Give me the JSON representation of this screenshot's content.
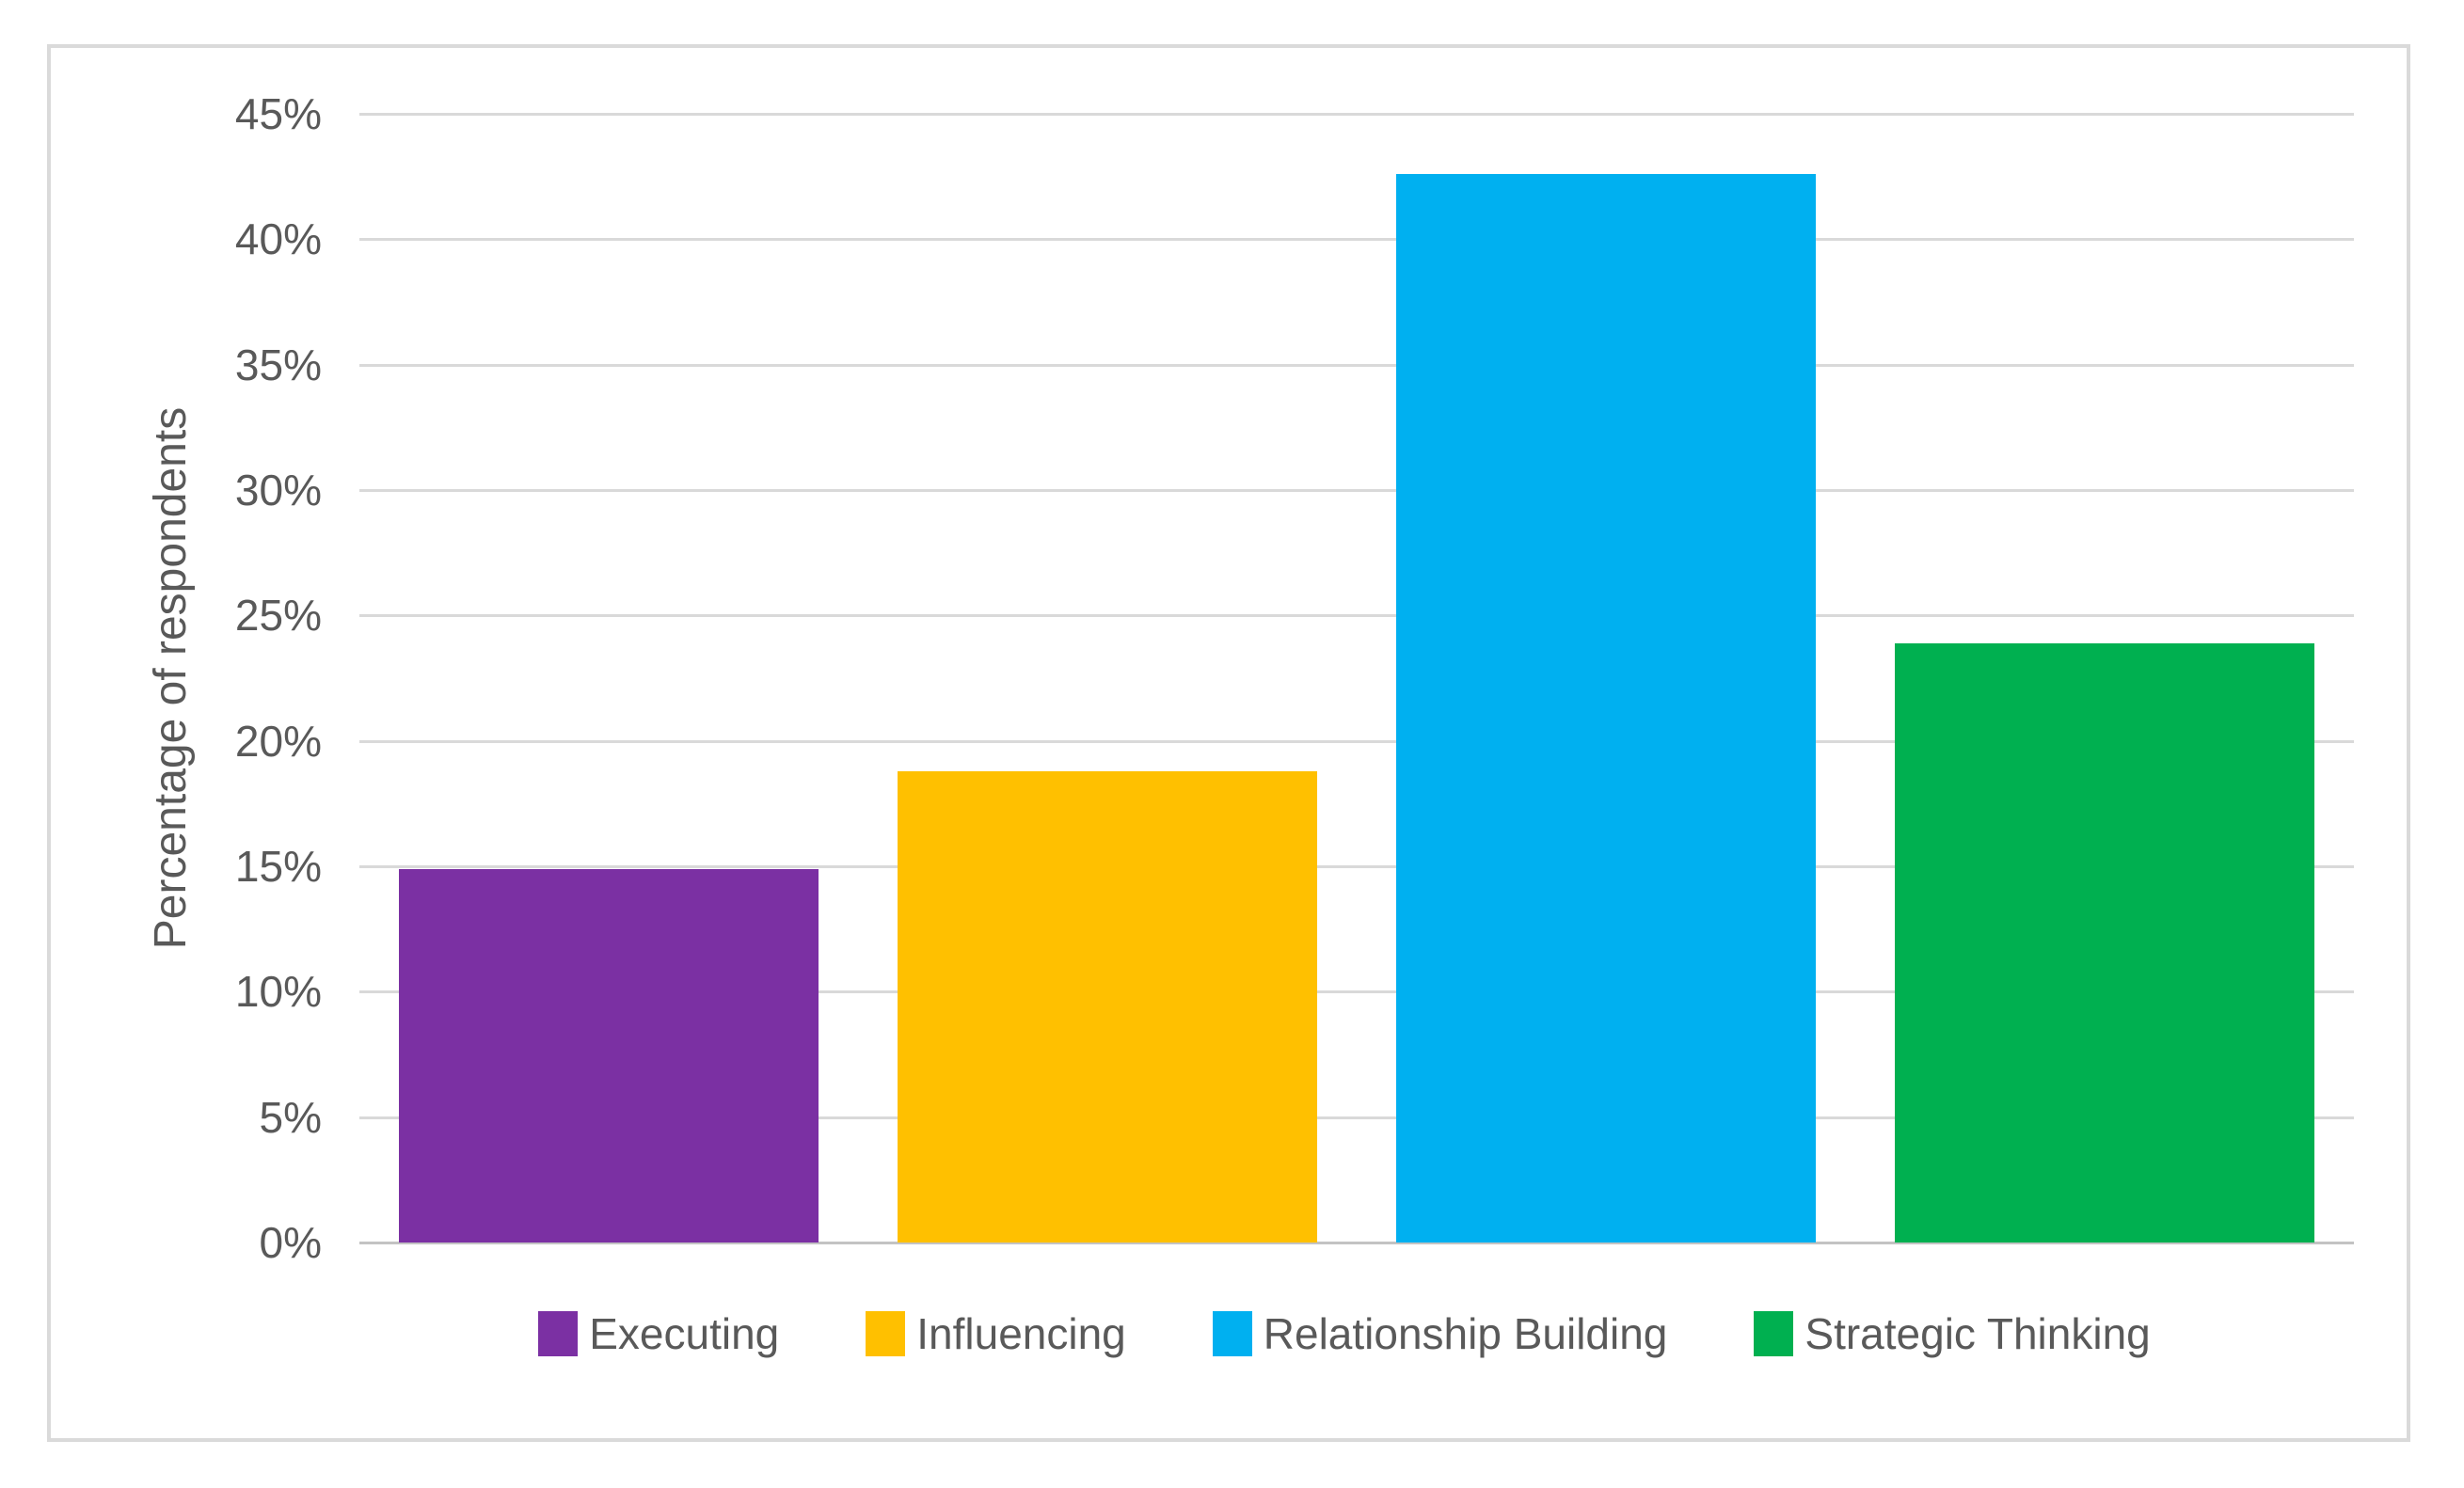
{
  "chart_data": {
    "type": "bar",
    "categories": [
      "Executing",
      "Influencing",
      "Relationship Building",
      "Strategic Thinking"
    ],
    "values": [
      14.9,
      18.8,
      42.6,
      23.9
    ],
    "bar_colors": [
      "#7b30a3",
      "#ffc000",
      "#00b0f0",
      "#00b050"
    ],
    "title": "",
    "xlabel": "",
    "ylabel": "Percentage of respondents",
    "ylim": [
      0,
      45
    ],
    "ytick_values": [
      45,
      40,
      35,
      30,
      25,
      20,
      15,
      10,
      5,
      0
    ],
    "ytick_labels": [
      "45%",
      "40%",
      "35%",
      "30%",
      "25%",
      "20%",
      "15%",
      "10%",
      "5%",
      "0%"
    ],
    "grid": true,
    "legend_position": "bottom",
    "legend_items": [
      {
        "label": "Executing",
        "color": "#7b30a3"
      },
      {
        "label": "Influencing",
        "color": "#ffc000"
      },
      {
        "label": "Relationship Building",
        "color": "#00b0f0"
      },
      {
        "label": "Strategic Thinking",
        "color": "#00b050"
      }
    ]
  },
  "styles": {
    "gridline_color": "#d9d9d9",
    "baseline_color": "#c3c3c3",
    "text_color": "#595959",
    "frame_border_color": "#dadada",
    "background": "#ffffff"
  }
}
